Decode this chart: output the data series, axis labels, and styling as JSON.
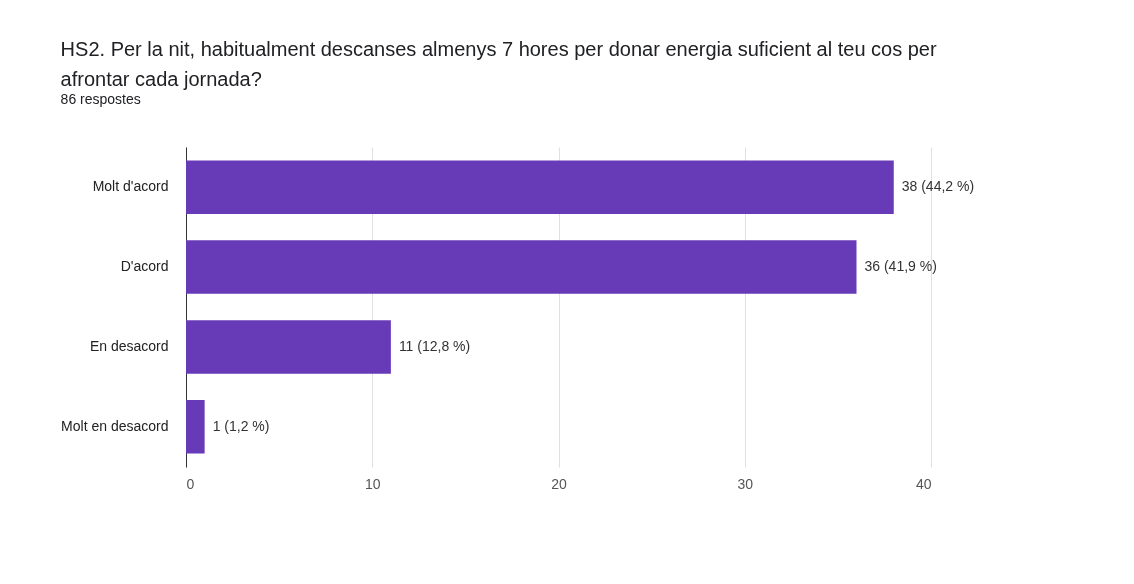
{
  "chart_data": {
    "type": "bar",
    "orientation": "horizontal",
    "title": "HS2. Per la nit, habitualment descanses almenys 7 hores per donar energia suficient al teu cos per afrontar cada jornada?",
    "subtitle": "86 respostes",
    "categories": [
      "Molt d'acord",
      "D'acord",
      "En desacord",
      "Molt en desacord"
    ],
    "values": [
      38,
      36,
      11,
      1
    ],
    "value_labels": [
      "38 (44,2 %)",
      "36 (41,9 %)",
      "11 (12,8 %)",
      "1 (1,2 %)"
    ],
    "color": "#673ab7",
    "xlim": [
      0,
      40
    ],
    "xticks": [
      0,
      10,
      20,
      30,
      40
    ],
    "grid": "x"
  }
}
